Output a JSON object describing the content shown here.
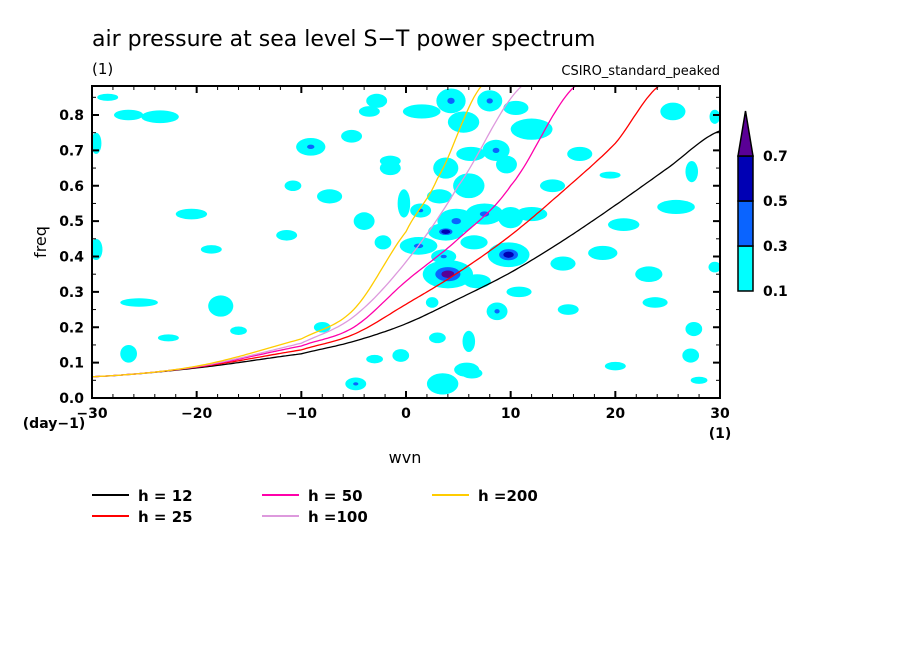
{
  "chart_data": {
    "type": "contour",
    "title": "air pressure at sea level S−T power spectrum",
    "units_label": "(1)",
    "model_label": "CSIRO_standard_peaked",
    "xlabel": "wvn",
    "ylabel": "freq",
    "x_units": "(1)",
    "y_units": "(day−1)",
    "xlim": [
      -30,
      30
    ],
    "ylim": [
      0,
      0.885
    ],
    "x_ticks": [
      -30,
      -20,
      -10,
      0,
      10,
      20,
      30
    ],
    "x_tick_labels": [
      "−30",
      "−20",
      "−10",
      "0",
      "10",
      "20",
      "30"
    ],
    "y_ticks": [
      0.0,
      0.1,
      0.2,
      0.3,
      0.4,
      0.5,
      0.6,
      0.7,
      0.8
    ],
    "y_tick_labels": [
      "0.0",
      "0.1",
      "0.2",
      "0.3",
      "0.4",
      "0.5",
      "0.6",
      "0.7",
      "0.8"
    ],
    "colorbar": {
      "levels": [
        0.1,
        0.3,
        0.5,
        0.7
      ],
      "level_labels": [
        "0.1",
        "0.3",
        "0.5",
        "0.7"
      ],
      "colors": [
        "#00ffff",
        "#0a64ff",
        "#0000b4",
        "#5a0096"
      ],
      "extend": "max"
    },
    "contour_blobs": [
      {
        "k": 4.3,
        "f": 0.84,
        "rk": 1.4,
        "rf": 0.035,
        "v": 0.35
      },
      {
        "k": 1.5,
        "f": 0.81,
        "rk": 1.8,
        "rf": 0.02,
        "v": 0.2
      },
      {
        "k": 8.0,
        "f": 0.84,
        "rk": 1.2,
        "rf": 0.03,
        "v": 0.35
      },
      {
        "k": -2.8,
        "f": 0.84,
        "rk": 1.0,
        "rf": 0.02,
        "v": 0.2
      },
      {
        "k": 5.5,
        "f": 0.78,
        "rk": 1.5,
        "rf": 0.03,
        "v": 0.2
      },
      {
        "k": 10.5,
        "f": 0.82,
        "rk": 1.2,
        "rf": 0.02,
        "v": 0.2
      },
      {
        "k": 12.0,
        "f": 0.76,
        "rk": 2.0,
        "rf": 0.03,
        "v": 0.2
      },
      {
        "k": 8.6,
        "f": 0.7,
        "rk": 1.3,
        "rf": 0.03,
        "v": 0.35
      },
      {
        "k": 6.2,
        "f": 0.69,
        "rk": 1.4,
        "rf": 0.02,
        "v": 0.2
      },
      {
        "k": 3.8,
        "f": 0.65,
        "rk": 1.2,
        "rf": 0.03,
        "v": 0.2
      },
      {
        "k": 9.6,
        "f": 0.66,
        "rk": 1.0,
        "rf": 0.025,
        "v": 0.2
      },
      {
        "k": 6.0,
        "f": 0.6,
        "rk": 1.5,
        "rf": 0.035,
        "v": 0.2
      },
      {
        "k": 3.2,
        "f": 0.57,
        "rk": 1.2,
        "rf": 0.02,
        "v": 0.2
      },
      {
        "k": 1.4,
        "f": 0.53,
        "rk": 1.0,
        "rf": 0.02,
        "v": 0.35
      },
      {
        "k": 4.8,
        "f": 0.5,
        "rk": 1.8,
        "rf": 0.035,
        "v": 0.35
      },
      {
        "k": 7.5,
        "f": 0.52,
        "rk": 1.8,
        "rf": 0.03,
        "v": 0.35
      },
      {
        "k": 10.0,
        "f": 0.51,
        "rk": 1.2,
        "rf": 0.03,
        "v": 0.2
      },
      {
        "k": 3.8,
        "f": 0.47,
        "rk": 1.7,
        "rf": 0.025,
        "v": 0.5
      },
      {
        "k": 6.5,
        "f": 0.44,
        "rk": 1.3,
        "rf": 0.02,
        "v": 0.2
      },
      {
        "k": 1.2,
        "f": 0.43,
        "rk": 1.8,
        "rf": 0.025,
        "v": 0.35
      },
      {
        "k": 3.6,
        "f": 0.4,
        "rk": 1.2,
        "rf": 0.02,
        "v": 0.35
      },
      {
        "k": 9.8,
        "f": 0.405,
        "rk": 2.0,
        "rf": 0.035,
        "v": 0.6
      },
      {
        "k": 4.0,
        "f": 0.35,
        "rk": 2.4,
        "rf": 0.04,
        "v": 0.7
      },
      {
        "k": 6.8,
        "f": 0.33,
        "rk": 1.3,
        "rf": 0.02,
        "v": 0.2
      },
      {
        "k": 10.8,
        "f": 0.3,
        "rk": 1.2,
        "rf": 0.015,
        "v": 0.2
      },
      {
        "k": 8.7,
        "f": 0.245,
        "rk": 1.0,
        "rf": 0.025,
        "v": 0.35
      },
      {
        "k": 6.0,
        "f": 0.16,
        "rk": 0.6,
        "rf": 0.03,
        "v": 0.2
      },
      {
        "k": 3.5,
        "f": 0.04,
        "rk": 1.5,
        "rf": 0.03,
        "v": 0.2
      },
      {
        "k": 6.3,
        "f": 0.07,
        "rk": 1.0,
        "rf": 0.015,
        "v": 0.35
      },
      {
        "k": -4.8,
        "f": 0.04,
        "rk": 1.0,
        "rf": 0.018,
        "v": 0.35
      },
      {
        "k": -9.1,
        "f": 0.71,
        "rk": 1.4,
        "rf": 0.025,
        "v": 0.35
      },
      {
        "k": -3.5,
        "f": 0.81,
        "rk": 1.0,
        "rf": 0.015,
        "v": 0.2
      },
      {
        "k": -5.2,
        "f": 0.74,
        "rk": 1.0,
        "rf": 0.018,
        "v": 0.2
      },
      {
        "k": -1.5,
        "f": 0.65,
        "rk": 1.0,
        "rf": 0.02,
        "v": 0.2
      },
      {
        "k": -0.2,
        "f": 0.55,
        "rk": 0.6,
        "rf": 0.04,
        "v": 0.2
      },
      {
        "k": -1.5,
        "f": 0.67,
        "rk": 1.0,
        "rf": 0.015,
        "v": 0.2
      },
      {
        "k": -26.5,
        "f": 0.8,
        "rk": 1.4,
        "rf": 0.015,
        "v": 0.2
      },
      {
        "k": -23.5,
        "f": 0.795,
        "rk": 1.8,
        "rf": 0.018,
        "v": 0.2
      },
      {
        "k": -28.5,
        "f": 0.85,
        "rk": 1.0,
        "rf": 0.01,
        "v": 0.2
      },
      {
        "k": -29.6,
        "f": 0.42,
        "rk": 0.6,
        "rf": 0.03,
        "v": 0.2
      },
      {
        "k": -29.6,
        "f": 0.72,
        "rk": 0.5,
        "rf": 0.03,
        "v": 0.2
      },
      {
        "k": -20.5,
        "f": 0.52,
        "rk": 1.5,
        "rf": 0.015,
        "v": 0.2
      },
      {
        "k": -18.6,
        "f": 0.42,
        "rk": 1.0,
        "rf": 0.012,
        "v": 0.2
      },
      {
        "k": -17.7,
        "f": 0.26,
        "rk": 1.2,
        "rf": 0.03,
        "v": 0.2
      },
      {
        "k": -16.0,
        "f": 0.19,
        "rk": 0.8,
        "rf": 0.012,
        "v": 0.2
      },
      {
        "k": -11.4,
        "f": 0.46,
        "rk": 1.0,
        "rf": 0.015,
        "v": 0.2
      },
      {
        "k": -7.3,
        "f": 0.57,
        "rk": 1.2,
        "rf": 0.02,
        "v": 0.2
      },
      {
        "k": -10.8,
        "f": 0.6,
        "rk": 0.8,
        "rf": 0.015,
        "v": 0.2
      },
      {
        "k": -25.5,
        "f": 0.27,
        "rk": 1.8,
        "rf": 0.012,
        "v": 0.2
      },
      {
        "k": -26.5,
        "f": 0.125,
        "rk": 0.8,
        "rf": 0.025,
        "v": 0.2
      },
      {
        "k": -22.7,
        "f": 0.17,
        "rk": 1.0,
        "rf": 0.01,
        "v": 0.2
      },
      {
        "k": -4.0,
        "f": 0.5,
        "rk": 1.0,
        "rf": 0.025,
        "v": 0.2
      },
      {
        "k": -2.2,
        "f": 0.44,
        "rk": 0.8,
        "rf": 0.02,
        "v": 0.2
      },
      {
        "k": -8.0,
        "f": 0.2,
        "rk": 0.8,
        "rf": 0.015,
        "v": 0.2
      },
      {
        "k": -3.0,
        "f": 0.11,
        "rk": 0.8,
        "rf": 0.012,
        "v": 0.2
      },
      {
        "k": -0.5,
        "f": 0.12,
        "rk": 0.8,
        "rf": 0.018,
        "v": 0.2
      },
      {
        "k": 2.5,
        "f": 0.27,
        "rk": 0.6,
        "rf": 0.015,
        "v": 0.2
      },
      {
        "k": 3.0,
        "f": 0.17,
        "rk": 0.8,
        "rf": 0.015,
        "v": 0.2
      },
      {
        "k": 5.8,
        "f": 0.08,
        "rk": 1.2,
        "rf": 0.02,
        "v": 0.2
      },
      {
        "k": 3.5,
        "f": 0.03,
        "rk": 1.2,
        "rf": 0.02,
        "v": 0.2
      },
      {
        "k": 12.0,
        "f": 0.52,
        "rk": 1.5,
        "rf": 0.02,
        "v": 0.2
      },
      {
        "k": 14.0,
        "f": 0.6,
        "rk": 1.2,
        "rf": 0.018,
        "v": 0.2
      },
      {
        "k": 15.0,
        "f": 0.38,
        "rk": 1.2,
        "rf": 0.02,
        "v": 0.2
      },
      {
        "k": 15.5,
        "f": 0.25,
        "rk": 1.0,
        "rf": 0.015,
        "v": 0.2
      },
      {
        "k": 16.6,
        "f": 0.69,
        "rk": 1.2,
        "rf": 0.02,
        "v": 0.2
      },
      {
        "k": 20.8,
        "f": 0.49,
        "rk": 1.5,
        "rf": 0.018,
        "v": 0.2
      },
      {
        "k": 18.8,
        "f": 0.41,
        "rk": 1.4,
        "rf": 0.02,
        "v": 0.2
      },
      {
        "k": 23.2,
        "f": 0.35,
        "rk": 1.3,
        "rf": 0.022,
        "v": 0.2
      },
      {
        "k": 23.8,
        "f": 0.27,
        "rk": 1.2,
        "rf": 0.015,
        "v": 0.2
      },
      {
        "k": 25.5,
        "f": 0.81,
        "rk": 1.2,
        "rf": 0.025,
        "v": 0.2
      },
      {
        "k": 25.8,
        "f": 0.54,
        "rk": 1.8,
        "rf": 0.02,
        "v": 0.2
      },
      {
        "k": 28.0,
        "f": 0.05,
        "rk": 0.8,
        "rf": 0.01,
        "v": 0.2
      },
      {
        "k": 27.3,
        "f": 0.64,
        "rk": 0.6,
        "rf": 0.03,
        "v": 0.2
      },
      {
        "k": 19.5,
        "f": 0.63,
        "rk": 1.0,
        "rf": 0.01,
        "v": 0.2
      },
      {
        "k": 20.0,
        "f": 0.09,
        "rk": 1.0,
        "rf": 0.012,
        "v": 0.2
      },
      {
        "k": 27.2,
        "f": 0.12,
        "rk": 0.8,
        "rf": 0.02,
        "v": 0.2
      },
      {
        "k": 27.5,
        "f": 0.195,
        "rk": 0.8,
        "rf": 0.02,
        "v": 0.2
      },
      {
        "k": 29.5,
        "f": 0.37,
        "rk": 0.6,
        "rf": 0.015,
        "v": 0.2
      },
      {
        "k": 29.5,
        "f": 0.795,
        "rk": 0.5,
        "rf": 0.02,
        "v": 0.2
      }
    ],
    "series": [
      {
        "name": "h = 12",
        "color": "#000000",
        "x": [
          -30,
          -20,
          -10,
          -5,
          0,
          5,
          10,
          15,
          20,
          25,
          30
        ],
        "y": [
          0.06,
          0.085,
          0.125,
          0.16,
          0.21,
          0.28,
          0.355,
          0.445,
          0.545,
          0.65,
          0.755
        ]
      },
      {
        "name": "h = 25",
        "color": "#ff0000",
        "x": [
          -30,
          -20,
          -10,
          -5,
          0,
          5,
          10,
          15,
          20,
          24.3
        ],
        "y": [
          0.06,
          0.087,
          0.136,
          0.18,
          0.265,
          0.355,
          0.46,
          0.585,
          0.72,
          0.885
        ]
      },
      {
        "name": "h = 50",
        "color": "#ff00aa",
        "x": [
          -30,
          -20,
          -10,
          -5,
          0,
          5,
          10,
          16.3
        ],
        "y": [
          0.06,
          0.088,
          0.147,
          0.2,
          0.33,
          0.45,
          0.6,
          0.885
        ]
      },
      {
        "name": "h =100",
        "color": "#dd99dd",
        "x": [
          -30,
          -20,
          -10,
          -5,
          0,
          5,
          11.2
        ],
        "y": [
          0.06,
          0.089,
          0.155,
          0.23,
          0.385,
          0.6,
          0.885
        ]
      },
      {
        "name": "h =200",
        "color": "#ffcc00",
        "x": [
          -30,
          -20,
          -10,
          -5,
          0,
          3,
          7.3
        ],
        "y": [
          0.06,
          0.09,
          0.167,
          0.25,
          0.47,
          0.62,
          0.885
        ]
      }
    ]
  }
}
